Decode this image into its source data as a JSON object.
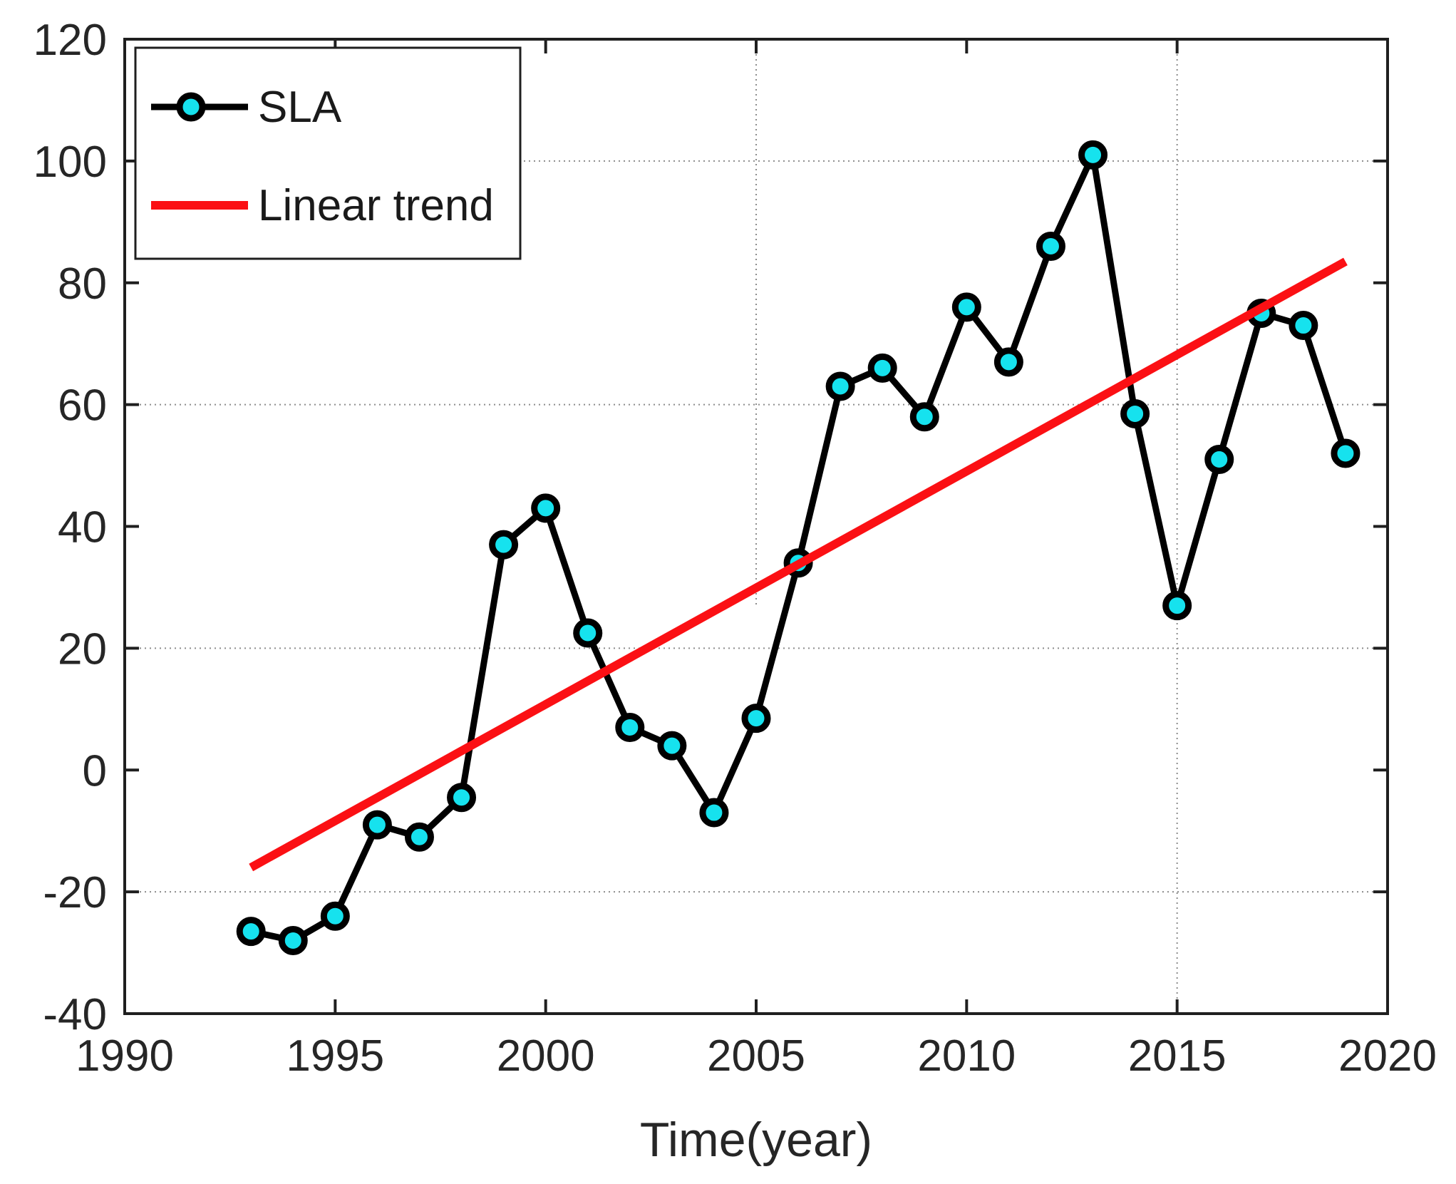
{
  "figure": {
    "background": "#ffffff"
  },
  "colors": {
    "axis": "#1f1f1f",
    "grid": "#8c8c8c",
    "tick_label": "#262626",
    "data_line": "#000000",
    "marker_fill": "#16e2ee",
    "marker_edge": "#000000",
    "trend": "#fb1014",
    "legend_border": "#1f1f1f",
    "legend_bg": "#ffffff"
  },
  "chart_data": {
    "type": "line",
    "title": "",
    "xlabel": "Time(year)",
    "ylabel": "",
    "xlim": [
      1990,
      2020
    ],
    "ylim": [
      -40,
      120
    ],
    "x_ticks": [
      1990,
      1995,
      2000,
      2005,
      2010,
      2015,
      2020
    ],
    "y_ticks": [
      -40,
      -20,
      0,
      20,
      40,
      60,
      80,
      100,
      120
    ],
    "grid": {
      "style": "dotted",
      "horizontal_at": [
        -20,
        20,
        60,
        100
      ],
      "vertical_full_at": [
        2015
      ],
      "vertical_partial": [
        {
          "x": 2005,
          "from_value": 120,
          "to_value": 27
        }
      ]
    },
    "legend": {
      "position": "top-left",
      "entries": [
        {
          "label": "SLA",
          "marker": "circle",
          "line_color": "#000000",
          "marker_fill": "#16e2ee"
        },
        {
          "label": "Linear trend",
          "marker": "none",
          "line_color": "#fb1014"
        }
      ]
    },
    "series": [
      {
        "name": "SLA",
        "type": "line+marker",
        "color": "#000000",
        "marker_fill": "#16e2ee",
        "x": [
          1993,
          1994,
          1995,
          1996,
          1997,
          1998,
          1999,
          2000,
          2001,
          2002,
          2003,
          2004,
          2005,
          2006,
          2007,
          2008,
          2009,
          2010,
          2011,
          2012,
          2013,
          2014,
          2015,
          2016,
          2017,
          2018,
          2019
        ],
        "values": [
          -26.5,
          -28,
          -24,
          -9,
          -11,
          -4.5,
          37,
          43,
          22.5,
          7,
          4,
          -7,
          8.5,
          34,
          63,
          66,
          58,
          76,
          67,
          86,
          101,
          58.5,
          27,
          51,
          75,
          73,
          52
        ]
      },
      {
        "name": "Linear trend",
        "type": "line",
        "color": "#fb1014",
        "x": [
          1993,
          2019
        ],
        "values": [
          -16,
          83.5
        ]
      }
    ]
  }
}
